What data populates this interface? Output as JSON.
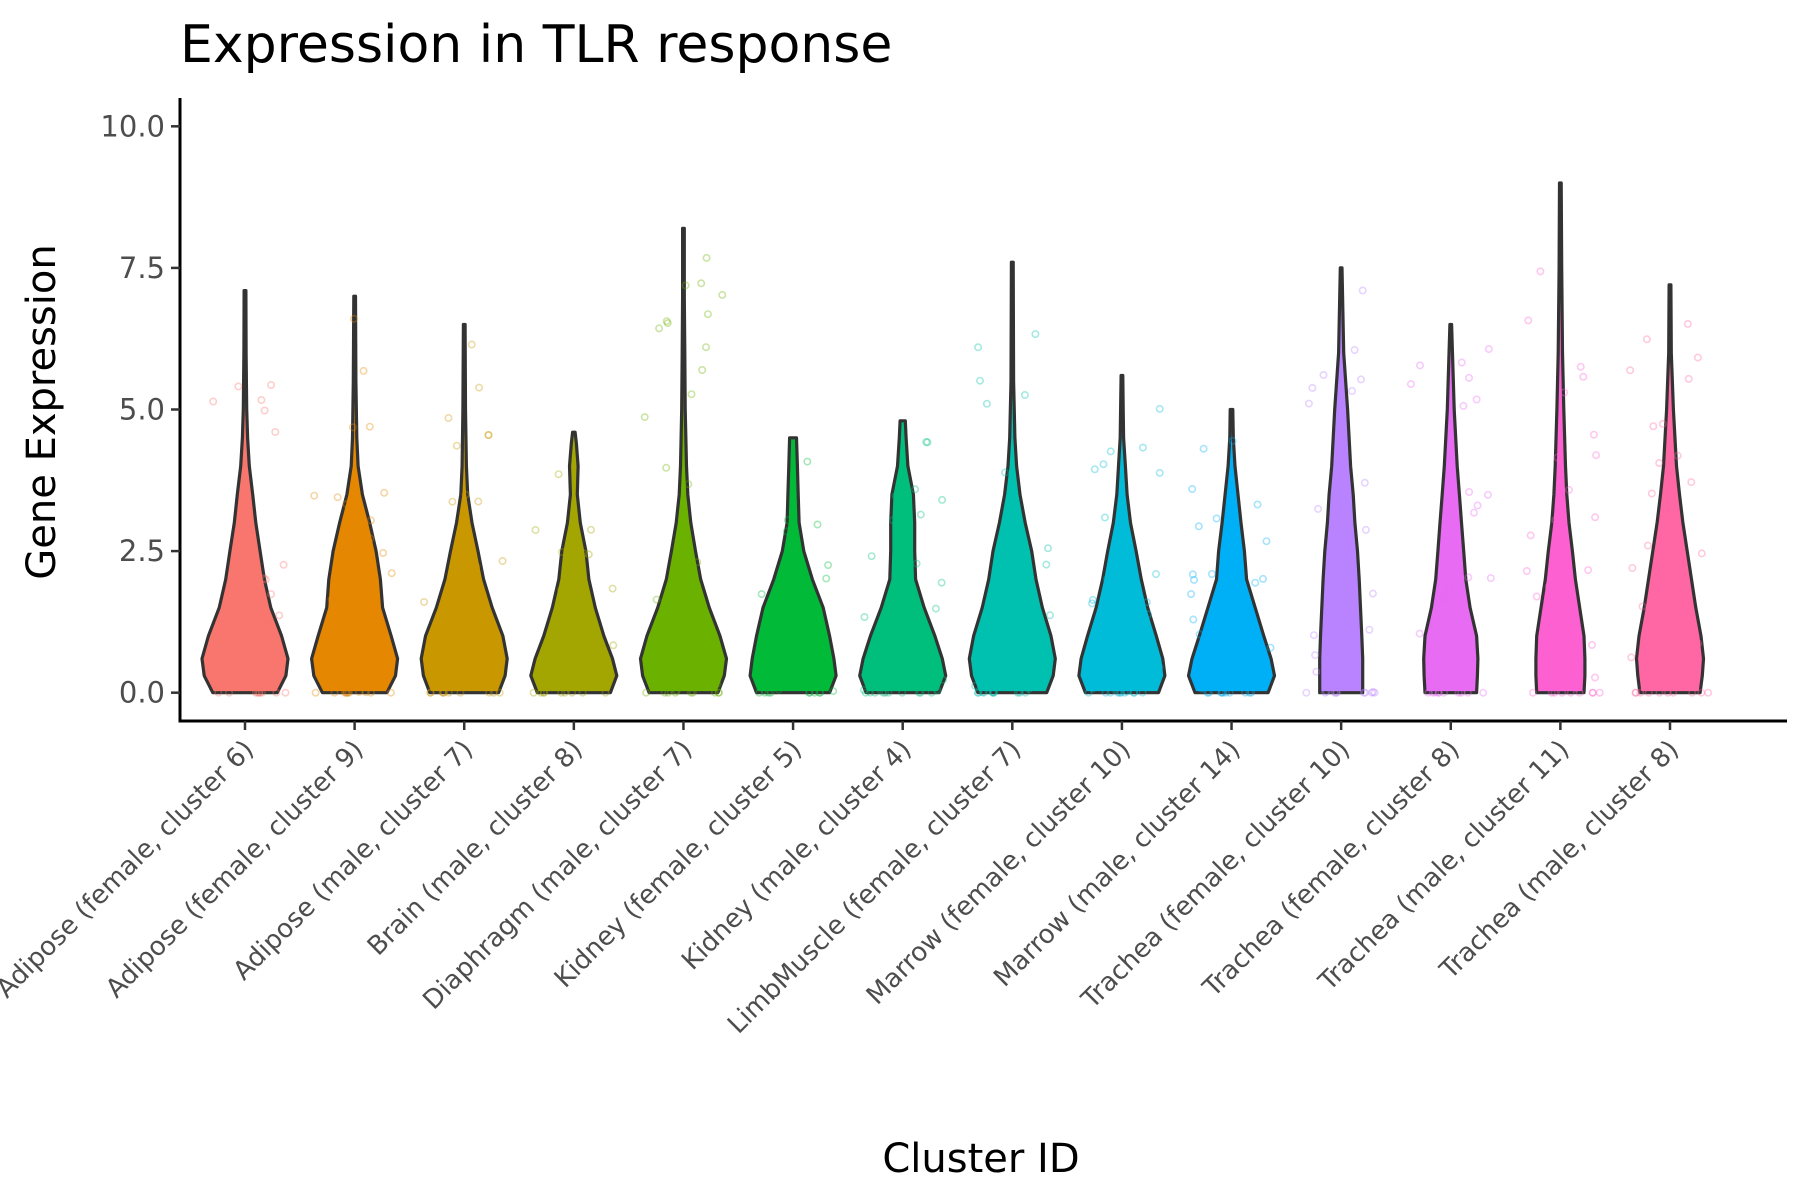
{
  "chart_data": {
    "type": "violin",
    "title": "Expression in TLR response",
    "xlabel": "Cluster ID",
    "ylabel": "Gene Expression",
    "ylim": [
      -0.5,
      10.5
    ],
    "yticks": [
      "0.0",
      "2.5",
      "5.0",
      "7.5",
      "10.0"
    ],
    "ytick_values": [
      0,
      2.5,
      5,
      7.5,
      10
    ],
    "grid": false,
    "legend": "none",
    "categories": [
      "Adipose (female, cluster 6)",
      "Adipose (female, cluster 9)",
      "Adipose (male, cluster 7)",
      "Brain (male, cluster 8)",
      "Diaphragm (male, cluster 7)",
      "Kidney (female, cluster 5)",
      "Kidney (male, cluster 4)",
      "LimbMuscle (female, cluster 7)",
      "Marrow (female, cluster 10)",
      "Marrow (male, cluster 14)",
      "Trachea (female, cluster 10)",
      "Trachea (female, cluster 8)",
      "Trachea (male, cluster 11)",
      "Trachea (male, cluster 8)"
    ],
    "colors": [
      "#F8766D",
      "#E58700",
      "#C99800",
      "#A3A500",
      "#6BB100",
      "#00BA38",
      "#00BF7D",
      "#00C0AF",
      "#00BCD8",
      "#00B0F6",
      "#B983FF",
      "#E76BF3",
      "#FD61D1",
      "#FF67A4"
    ],
    "max_values": [
      7.1,
      7.0,
      6.5,
      4.6,
      8.2,
      4.5,
      4.8,
      7.6,
      5.6,
      5.0,
      7.5,
      6.5,
      9.0,
      7.2
    ],
    "shape_profiles": [
      [
        [
          0,
          0.75
        ],
        [
          0.3,
          0.95
        ],
        [
          0.6,
          1.0
        ],
        [
          1.0,
          0.85
        ],
        [
          1.5,
          0.6
        ],
        [
          2.0,
          0.45
        ],
        [
          2.5,
          0.35
        ],
        [
          3.0,
          0.25
        ],
        [
          3.5,
          0.18
        ],
        [
          4.0,
          0.1
        ],
        [
          4.5,
          0.06
        ],
        [
          5.0,
          0.04
        ],
        [
          6.0,
          0.025
        ],
        [
          7.1,
          0.02
        ]
      ],
      [
        [
          0,
          0.75
        ],
        [
          0.3,
          0.95
        ],
        [
          0.6,
          1.0
        ],
        [
          1.0,
          0.85
        ],
        [
          1.5,
          0.65
        ],
        [
          2.0,
          0.6
        ],
        [
          2.5,
          0.5
        ],
        [
          3.0,
          0.35
        ],
        [
          3.5,
          0.18
        ],
        [
          4.0,
          0.08
        ],
        [
          4.5,
          0.05
        ],
        [
          5.5,
          0.03
        ],
        [
          7.0,
          0.02
        ]
      ],
      [
        [
          0,
          0.8
        ],
        [
          0.3,
          0.95
        ],
        [
          0.6,
          1.0
        ],
        [
          1.0,
          0.9
        ],
        [
          1.5,
          0.65
        ],
        [
          2.0,
          0.45
        ],
        [
          2.5,
          0.32
        ],
        [
          3.0,
          0.18
        ],
        [
          3.5,
          0.08
        ],
        [
          4.0,
          0.05
        ],
        [
          5.0,
          0.03
        ],
        [
          6.5,
          0.02
        ]
      ],
      [
        [
          0,
          0.85
        ],
        [
          0.3,
          1.0
        ],
        [
          0.6,
          0.9
        ],
        [
          1.0,
          0.7
        ],
        [
          1.5,
          0.5
        ],
        [
          2.0,
          0.35
        ],
        [
          2.5,
          0.28
        ],
        [
          3.0,
          0.15
        ],
        [
          3.5,
          0.08
        ],
        [
          4.0,
          0.1
        ],
        [
          4.4,
          0.06
        ],
        [
          4.6,
          0.03
        ]
      ],
      [
        [
          0,
          0.8
        ],
        [
          0.3,
          0.95
        ],
        [
          0.6,
          1.0
        ],
        [
          1.0,
          0.85
        ],
        [
          1.5,
          0.6
        ],
        [
          2.0,
          0.4
        ],
        [
          2.5,
          0.28
        ],
        [
          3.0,
          0.17
        ],
        [
          3.5,
          0.1
        ],
        [
          4.0,
          0.07
        ],
        [
          5.0,
          0.04
        ],
        [
          6.0,
          0.03
        ],
        [
          7.0,
          0.02
        ],
        [
          8.2,
          0.02
        ]
      ],
      [
        [
          0,
          0.85
        ],
        [
          0.3,
          1.0
        ],
        [
          0.6,
          0.95
        ],
        [
          1.0,
          0.85
        ],
        [
          1.5,
          0.7
        ],
        [
          2.0,
          0.45
        ],
        [
          2.5,
          0.25
        ],
        [
          3.0,
          0.14
        ],
        [
          3.5,
          0.12
        ],
        [
          4.0,
          0.1
        ],
        [
          4.5,
          0.08
        ]
      ],
      [
        [
          0,
          0.85
        ],
        [
          0.3,
          1.0
        ],
        [
          0.6,
          0.92
        ],
        [
          1.0,
          0.75
        ],
        [
          1.5,
          0.5
        ],
        [
          2.0,
          0.3
        ],
        [
          2.5,
          0.28
        ],
        [
          3.0,
          0.28
        ],
        [
          3.5,
          0.25
        ],
        [
          4.0,
          0.12
        ],
        [
          4.5,
          0.08
        ],
        [
          4.8,
          0.06
        ]
      ],
      [
        [
          0,
          0.8
        ],
        [
          0.3,
          0.95
        ],
        [
          0.6,
          1.0
        ],
        [
          1.0,
          0.9
        ],
        [
          1.5,
          0.7
        ],
        [
          2.0,
          0.55
        ],
        [
          2.5,
          0.45
        ],
        [
          3.0,
          0.3
        ],
        [
          3.5,
          0.18
        ],
        [
          4.0,
          0.1
        ],
        [
          4.5,
          0.06
        ],
        [
          5.5,
          0.03
        ],
        [
          7.6,
          0.02
        ]
      ],
      [
        [
          0,
          0.85
        ],
        [
          0.3,
          1.0
        ],
        [
          0.6,
          0.95
        ],
        [
          1.0,
          0.8
        ],
        [
          1.5,
          0.6
        ],
        [
          2.0,
          0.45
        ],
        [
          2.5,
          0.33
        ],
        [
          3.0,
          0.2
        ],
        [
          3.5,
          0.12
        ],
        [
          4.0,
          0.08
        ],
        [
          4.5,
          0.04
        ],
        [
          5.0,
          0.03
        ],
        [
          5.6,
          0.02
        ]
      ],
      [
        [
          0,
          0.85
        ],
        [
          0.3,
          1.0
        ],
        [
          0.6,
          0.92
        ],
        [
          1.0,
          0.75
        ],
        [
          1.5,
          0.55
        ],
        [
          2.0,
          0.35
        ],
        [
          2.5,
          0.3
        ],
        [
          3.0,
          0.22
        ],
        [
          3.5,
          0.15
        ],
        [
          4.0,
          0.08
        ],
        [
          4.5,
          0.04
        ],
        [
          5.0,
          0.03
        ]
      ],
      [
        [
          0,
          0.5
        ],
        [
          0.3,
          0.5
        ],
        [
          0.6,
          0.5
        ],
        [
          1.0,
          0.48
        ],
        [
          1.5,
          0.45
        ],
        [
          2.0,
          0.42
        ],
        [
          2.5,
          0.38
        ],
        [
          3.0,
          0.32
        ],
        [
          3.5,
          0.28
        ],
        [
          4.0,
          0.22
        ],
        [
          5.0,
          0.15
        ],
        [
          6.0,
          0.06
        ],
        [
          7.5,
          0.02
        ]
      ],
      [
        [
          0,
          0.6
        ],
        [
          0.3,
          0.62
        ],
        [
          0.6,
          0.63
        ],
        [
          1.0,
          0.6
        ],
        [
          1.5,
          0.45
        ],
        [
          2.0,
          0.35
        ],
        [
          2.5,
          0.3
        ],
        [
          3.0,
          0.25
        ],
        [
          3.5,
          0.2
        ],
        [
          4.0,
          0.15
        ],
        [
          5.0,
          0.08
        ],
        [
          6.5,
          0.02
        ]
      ],
      [
        [
          0,
          0.55
        ],
        [
          0.3,
          0.57
        ],
        [
          0.6,
          0.57
        ],
        [
          1.0,
          0.55
        ],
        [
          1.5,
          0.45
        ],
        [
          2.0,
          0.35
        ],
        [
          2.5,
          0.28
        ],
        [
          3.0,
          0.2
        ],
        [
          3.5,
          0.15
        ],
        [
          4.0,
          0.12
        ],
        [
          5.0,
          0.08
        ],
        [
          6.0,
          0.05
        ],
        [
          7.5,
          0.03
        ],
        [
          9.0,
          0.02
        ]
      ],
      [
        [
          0,
          0.7
        ],
        [
          0.3,
          0.75
        ],
        [
          0.6,
          0.78
        ],
        [
          1.0,
          0.72
        ],
        [
          1.5,
          0.6
        ],
        [
          2.0,
          0.5
        ],
        [
          2.5,
          0.4
        ],
        [
          3.0,
          0.3
        ],
        [
          3.5,
          0.22
        ],
        [
          4.0,
          0.15
        ],
        [
          5.0,
          0.08
        ],
        [
          6.0,
          0.03
        ],
        [
          7.2,
          0.02
        ]
      ]
    ]
  }
}
